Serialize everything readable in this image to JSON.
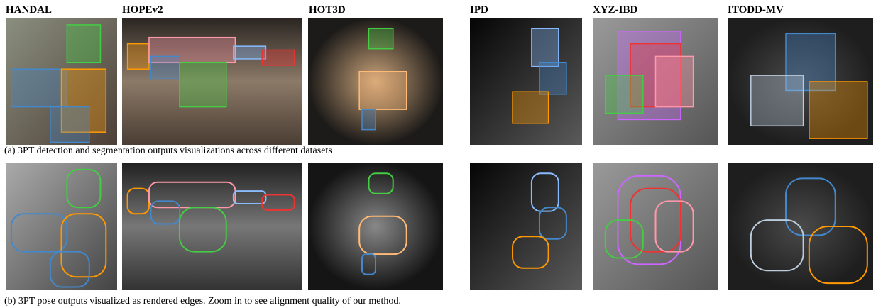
{
  "datasets": [
    "HANDAL",
    "HOPEv2",
    "HOT3D",
    "IPD",
    "XYZ-IBD",
    "ITODD-MV"
  ],
  "captions": {
    "a": "(a) 3PT detection and segmentation outputs visualizations across different datasets",
    "b": "(b) 3PT pose outputs visualized as rendered edges. Zoom in to see alignment quality of our method."
  }
}
